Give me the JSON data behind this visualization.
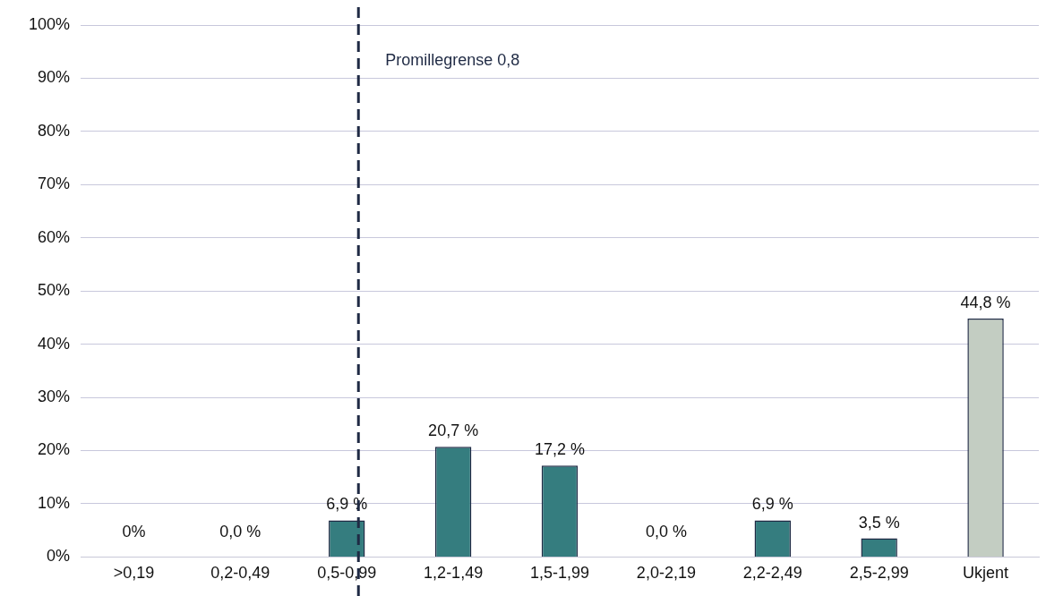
{
  "chart_data": {
    "type": "bar",
    "categories": [
      ">0,19",
      "0,2-0,49",
      "0,5-0,99",
      "1,2-1,49",
      "1,5-1,99",
      "2,0-2,19",
      "2,2-2,49",
      "2,5-2,99",
      "Ukjent"
    ],
    "values": [
      0,
      0,
      6.9,
      20.7,
      17.2,
      0,
      6.9,
      3.5,
      44.8
    ],
    "colors": [
      "#357d7f",
      "#357d7f",
      "#357d7f",
      "#357d7f",
      "#357d7f",
      "#357d7f",
      "#357d7f",
      "#357d7f",
      "#c3cdc2"
    ],
    "value_labels": [
      "0%",
      "0,0 %",
      "6,9 %",
      "20,7 %",
      "17,2 %",
      "0,0 %",
      "6,9 %",
      "3,5 %",
      "44,8 %"
    ],
    "ylim": [
      0,
      100
    ],
    "yticks": [
      {
        "value": 0,
        "label": "0%"
      },
      {
        "value": 10,
        "label": "10%"
      },
      {
        "value": 20,
        "label": "20%"
      },
      {
        "value": 30,
        "label": "30%"
      },
      {
        "value": 40,
        "label": "40%"
      },
      {
        "value": 50,
        "label": "50%"
      },
      {
        "value": 60,
        "label": "60%"
      },
      {
        "value": 70,
        "label": "70%"
      },
      {
        "value": 80,
        "label": "80%"
      },
      {
        "value": 90,
        "label": "90%"
      },
      {
        "value": 100,
        "label": "100%"
      }
    ],
    "grid": "y",
    "legend": false,
    "ref_lines": [
      {
        "axis": "x",
        "value": "0,5-0,99",
        "label": "Promillegrense 0,8",
        "color": "#1f2a44",
        "line_style": "dashed"
      }
    ]
  }
}
